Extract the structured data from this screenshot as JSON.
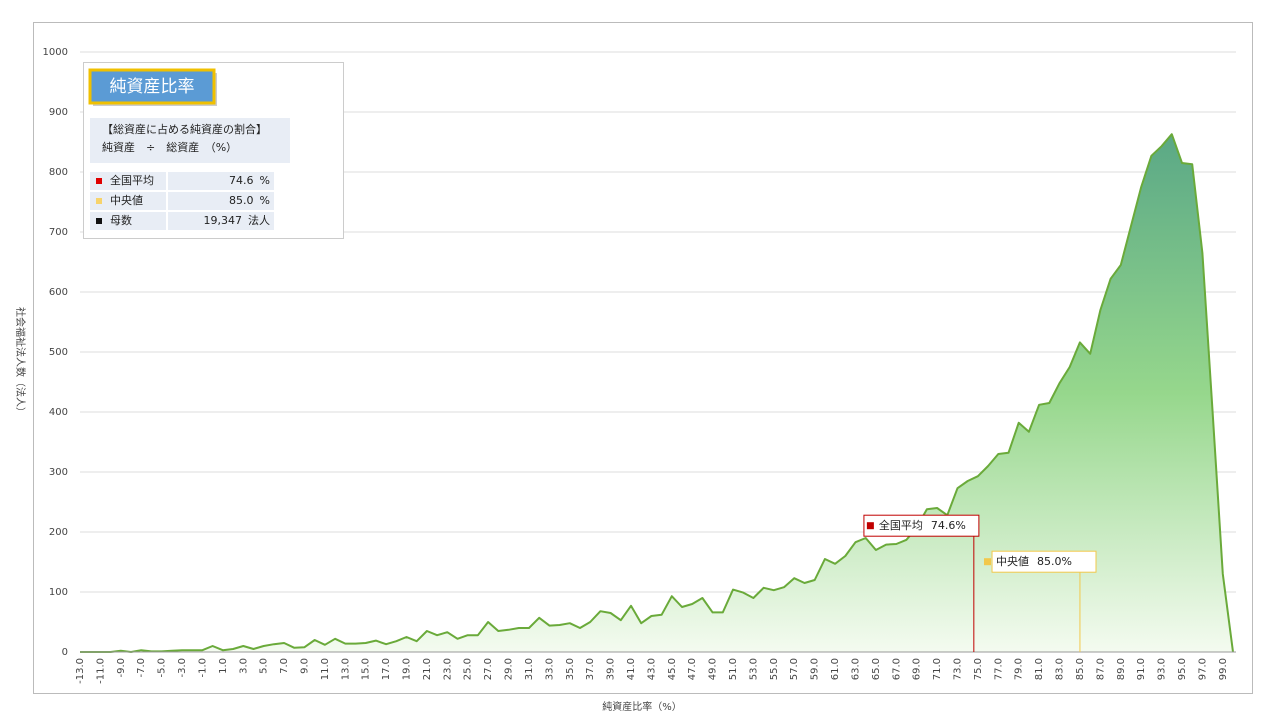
{
  "chart_data": {
    "type": "area",
    "x_label": "純資産比率（%）",
    "y_label": "社会福祉法人数（法人）",
    "ylim": [
      0,
      1000
    ],
    "yticks": [
      0,
      100,
      200,
      300,
      400,
      500,
      600,
      700,
      800,
      900,
      1000
    ],
    "grid": true,
    "categories": [
      "-13.0",
      null,
      "-11.0",
      null,
      "-9.0",
      null,
      "-7.0",
      null,
      "-5.0",
      null,
      "-3.0",
      null,
      "-1.0",
      null,
      "1.0",
      null,
      "3.0",
      null,
      "5.0",
      null,
      "7.0",
      null,
      "9.0",
      null,
      "11.0",
      null,
      "13.0",
      null,
      "15.0",
      null,
      "17.0",
      null,
      "19.0",
      null,
      "21.0",
      null,
      "23.0",
      null,
      "25.0",
      null,
      "27.0",
      null,
      "29.0",
      null,
      "31.0",
      null,
      "33.0",
      null,
      "35.0",
      null,
      "37.0",
      null,
      "39.0",
      null,
      "41.0",
      null,
      "43.0",
      null,
      "45.0",
      null,
      "47.0",
      null,
      "49.0",
      null,
      "51.0",
      null,
      "53.0",
      null,
      "55.0",
      null,
      "57.0",
      null,
      "59.0",
      null,
      "61.0",
      null,
      "63.0",
      null,
      "65.0",
      null,
      "67.0",
      null,
      "69.0",
      null,
      "71.0",
      null,
      "73.0",
      null,
      "75.0",
      null,
      "77.0",
      null,
      "79.0",
      null,
      "81.0",
      null,
      "83.0",
      null,
      "85.0",
      null,
      "87.0",
      null,
      "89.0",
      null,
      "91.0",
      null,
      "93.0",
      null,
      "95.0",
      null,
      "97.0",
      null,
      "99.0",
      null
    ],
    "xlim": [
      -13,
      100
    ],
    "series": [
      {
        "color": "#6aaa3a",
        "values": [
          0,
          0,
          0,
          0,
          2,
          0,
          3,
          1,
          1,
          2,
          3,
          3,
          3,
          10,
          3,
          5,
          10,
          5,
          10,
          13,
          15,
          7,
          8,
          20,
          12,
          22,
          14,
          14,
          15,
          19,
          13,
          18,
          25,
          18,
          35,
          28,
          33,
          22,
          28,
          28,
          50,
          35,
          37,
          40,
          40,
          57,
          44,
          45,
          48,
          40,
          50,
          68,
          65,
          53,
          77,
          48,
          60,
          62,
          93,
          75,
          80,
          90,
          66,
          66,
          104,
          99,
          90,
          107,
          103,
          108,
          123,
          115,
          120,
          155,
          147,
          160,
          183,
          190,
          170,
          179,
          180,
          187,
          208,
          238,
          240,
          228,
          273,
          285,
          293,
          310,
          330,
          332,
          382,
          367,
          412,
          415,
          448,
          475,
          516,
          497,
          570,
          622,
          645,
          710,
          775,
          827,
          843,
          863,
          815,
          813,
          665,
          400,
          130,
          0
        ]
      }
    ],
    "reference_lines": [
      {
        "label": "全国平均",
        "value": 74.6,
        "value_label": "74.6%",
        "color": "#c00000",
        "top": 193
      },
      {
        "label": "中央値",
        "value": 85.0,
        "value_label": "85.0%",
        "color": "#f2c84b",
        "top": 133
      }
    ]
  },
  "info_box": {
    "title": "純資産比率",
    "description": [
      "【総資産に占める純資産の割合】",
      "純資産　÷　総資産　（%）"
    ],
    "rows": [
      {
        "label": "全国平均",
        "value": "74.6",
        "unit": "%",
        "color": "#e00000"
      },
      {
        "label": "中央値",
        "value": "85.0",
        "unit": "%",
        "color": "#f7d36b"
      },
      {
        "label": "母数",
        "value": "19,347",
        "unit": "法人",
        "color": "#111111"
      }
    ]
  }
}
